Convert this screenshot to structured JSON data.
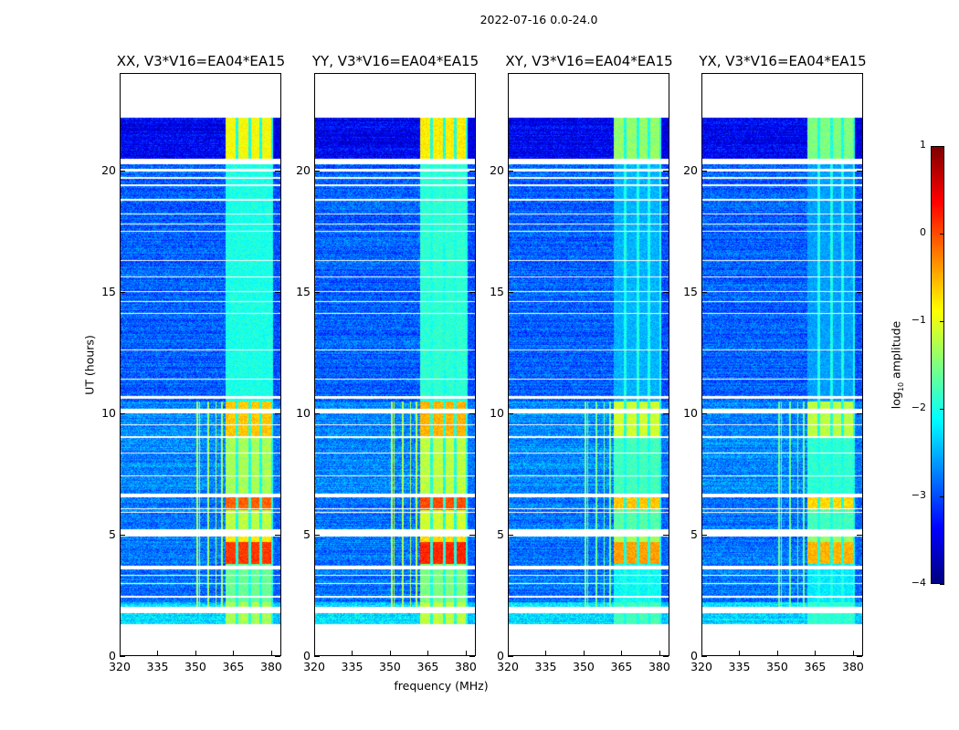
{
  "chart_data": {
    "type": "heatmap",
    "suptitle": "2022-07-16 0.0-24.0",
    "xlabel": "frequency (MHz)",
    "ylabel": "UT (hours)",
    "xlim": [
      320,
      384
    ],
    "ylim": [
      0,
      24
    ],
    "xticks": [
      320,
      335,
      350,
      365,
      380
    ],
    "yticks": [
      0,
      5,
      10,
      15,
      20
    ],
    "colorbar": {
      "label_main": "log",
      "label_sub": "10",
      "label_rest": " amplitude",
      "range": [
        -4,
        1
      ],
      "ticks": [
        1,
        0,
        -1,
        -2,
        -3,
        -4
      ],
      "cmap": "jet"
    },
    "time_coverage": [
      1.3,
      22.2
    ],
    "rfi_band_mhz": [
      [
        362,
        366
      ],
      [
        367,
        371
      ],
      [
        372,
        375.5
      ],
      [
        376.5,
        380
      ]
    ],
    "narrow_rfi_mhz": [
      350.5,
      351.5,
      355,
      358,
      360.5
    ],
    "flagged_hours": [
      [
        1.75,
        2.0
      ],
      [
        2.4,
        2.45
      ],
      [
        2.95,
        3.0
      ],
      [
        3.3,
        3.35
      ],
      [
        3.55,
        3.72
      ],
      [
        4.9,
        5.2
      ],
      [
        5.9,
        5.95
      ],
      [
        6.05,
        6.1
      ],
      [
        6.55,
        6.68
      ],
      [
        7.4,
        7.45
      ],
      [
        8.35,
        8.4
      ],
      [
        9.0,
        9.05
      ],
      [
        9.5,
        9.55
      ],
      [
        10.0,
        10.2
      ],
      [
        10.6,
        10.72
      ],
      [
        11.4,
        11.45
      ],
      [
        12.6,
        12.65
      ],
      [
        14.1,
        14.15
      ],
      [
        14.6,
        14.65
      ],
      [
        15.0,
        15.05
      ],
      [
        15.6,
        15.65
      ],
      [
        16.3,
        16.35
      ],
      [
        17.5,
        17.55
      ],
      [
        17.8,
        17.85
      ],
      [
        18.2,
        18.25
      ],
      [
        18.8,
        18.85
      ],
      [
        19.4,
        19.45
      ],
      [
        19.7,
        19.75
      ],
      [
        20.0,
        20.1
      ],
      [
        20.3,
        20.5
      ]
    ],
    "segments": [
      {
        "t": [
          1.3,
          2.2
        ],
        "background": -2.3,
        "band": -1.3
      },
      {
        "t": [
          2.2,
          3.8
        ],
        "background": -2.8,
        "band": -1.6
      },
      {
        "t": [
          3.8,
          4.7
        ],
        "background": -2.8,
        "band": 0.1
      },
      {
        "t": [
          4.7,
          5.0
        ],
        "background": -2.8,
        "band": -0.8
      },
      {
        "t": [
          5.0,
          6.0
        ],
        "background": -2.8,
        "band": -1.2
      },
      {
        "t": [
          6.0,
          6.6
        ],
        "background": -2.8,
        "band": -0.1
      },
      {
        "t": [
          6.6,
          9.0
        ],
        "background": -2.7,
        "band": -1.3
      },
      {
        "t": [
          9.0,
          10.5
        ],
        "background": -2.7,
        "band": -0.6
      },
      {
        "t": [
          10.5,
          20.5
        ],
        "background": -2.9,
        "band": -2.0
      },
      {
        "t": [
          20.5,
          22.2
        ],
        "background": -3.4,
        "band": -0.9
      }
    ],
    "panels": [
      {
        "title": "XX, V3*V16=EA04*EA15",
        "band_offset": 0.0
      },
      {
        "title": "YY, V3*V16=EA04*EA15",
        "band_offset": 0.1
      },
      {
        "title": "XY, V3*V16=EA04*EA15",
        "band_offset": -0.5
      },
      {
        "title": "YX, V3*V16=EA04*EA15",
        "band_offset": -0.6
      }
    ]
  }
}
